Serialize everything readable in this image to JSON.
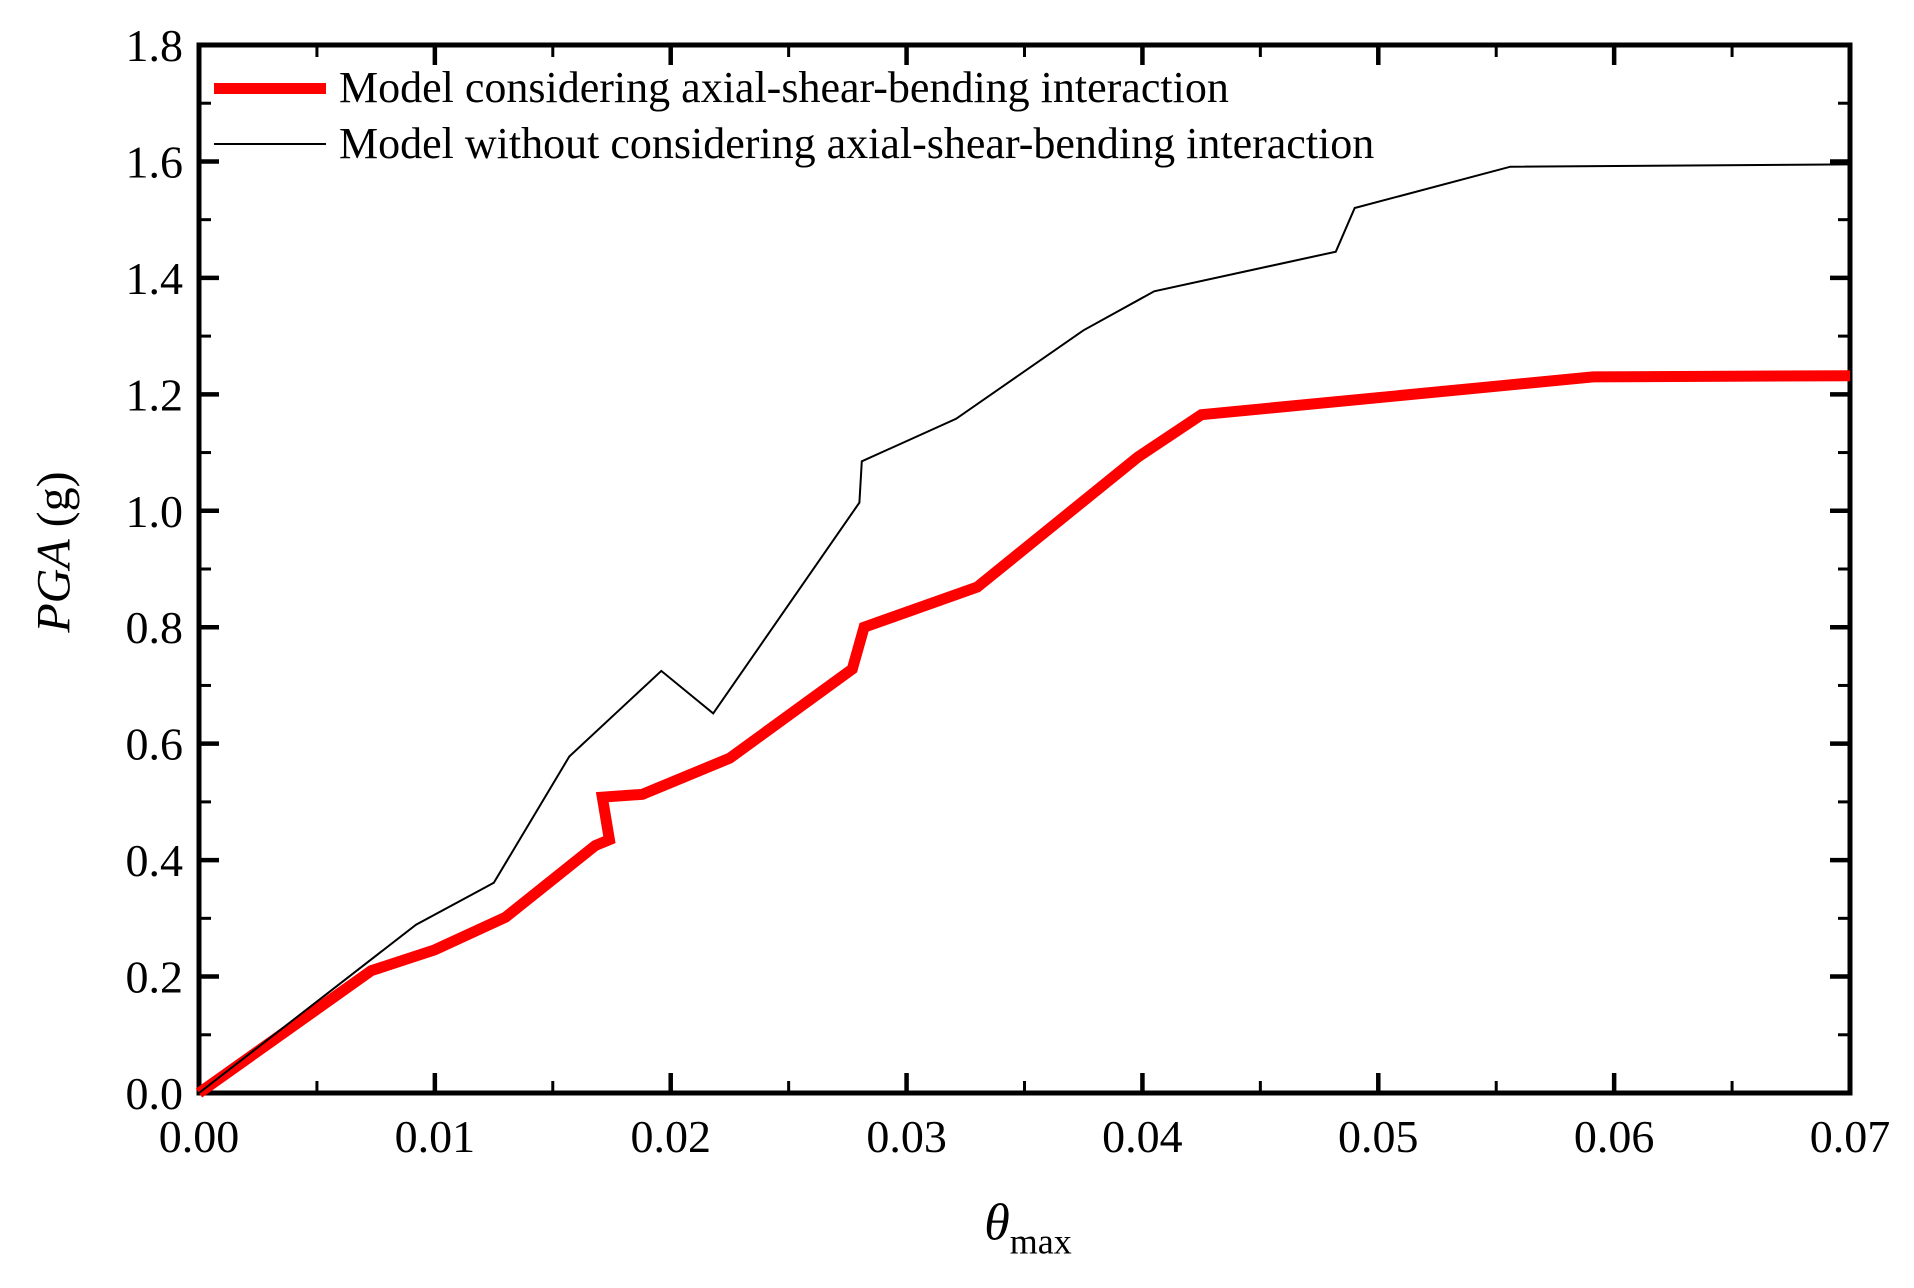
{
  "page": {
    "background": "#ffffff"
  },
  "axes": {
    "x_title_symbol": "θ",
    "x_title_subscript": "max",
    "y_title_italic": "PGA",
    "y_title_rest": " (g)"
  },
  "chart_data": {
    "type": "line",
    "title": "",
    "xlabel": "θ_max",
    "ylabel": "PGA (g)",
    "xlim": [
      0,
      0.07
    ],
    "ylim": [
      0,
      1.8
    ],
    "x_tick_labels": [
      "0.00",
      "0.01",
      "0.02",
      "0.03",
      "0.04",
      "0.05",
      "0.06",
      "0.07"
    ],
    "y_tick_labels": [
      "0.0",
      "0.2",
      "0.4",
      "0.6",
      "0.8",
      "1.0",
      "1.2",
      "1.4",
      "1.6",
      "1.8"
    ],
    "x_minor_step": 0.005,
    "y_minor_step": 0.1,
    "grid": false,
    "legend_position": "top-left",
    "frame_color": "#000000",
    "series": [
      {
        "name": "Model considering axial-shear-bending interaction",
        "color": "#ff0000",
        "line_width": 11,
        "points": [
          [
            0.0,
            0.0
          ],
          [
            0.0073,
            0.21
          ],
          [
            0.01,
            0.246
          ],
          [
            0.013,
            0.302
          ],
          [
            0.0168,
            0.425
          ],
          [
            0.0174,
            0.435
          ],
          [
            0.0171,
            0.508
          ],
          [
            0.0188,
            0.513
          ],
          [
            0.0225,
            0.575
          ],
          [
            0.0277,
            0.728
          ],
          [
            0.0282,
            0.8
          ],
          [
            0.033,
            0.869
          ],
          [
            0.0398,
            1.092
          ],
          [
            0.0425,
            1.165
          ],
          [
            0.0591,
            1.23
          ],
          [
            0.07,
            1.232
          ]
        ]
      },
      {
        "name": "Model without considering axial-shear-bending interaction",
        "color": "#000000",
        "line_width": 2,
        "points": [
          [
            0.0,
            0.0
          ],
          [
            0.0092,
            0.289
          ],
          [
            0.0125,
            0.361
          ],
          [
            0.0157,
            0.578
          ],
          [
            0.0196,
            0.725
          ],
          [
            0.0218,
            0.652
          ],
          [
            0.028,
            1.014
          ],
          [
            0.0281,
            1.085
          ],
          [
            0.0321,
            1.158
          ],
          [
            0.0375,
            1.31
          ],
          [
            0.0405,
            1.377
          ],
          [
            0.0482,
            1.445
          ],
          [
            0.049,
            1.52
          ],
          [
            0.0556,
            1.591
          ],
          [
            0.07,
            1.595
          ]
        ]
      }
    ]
  }
}
